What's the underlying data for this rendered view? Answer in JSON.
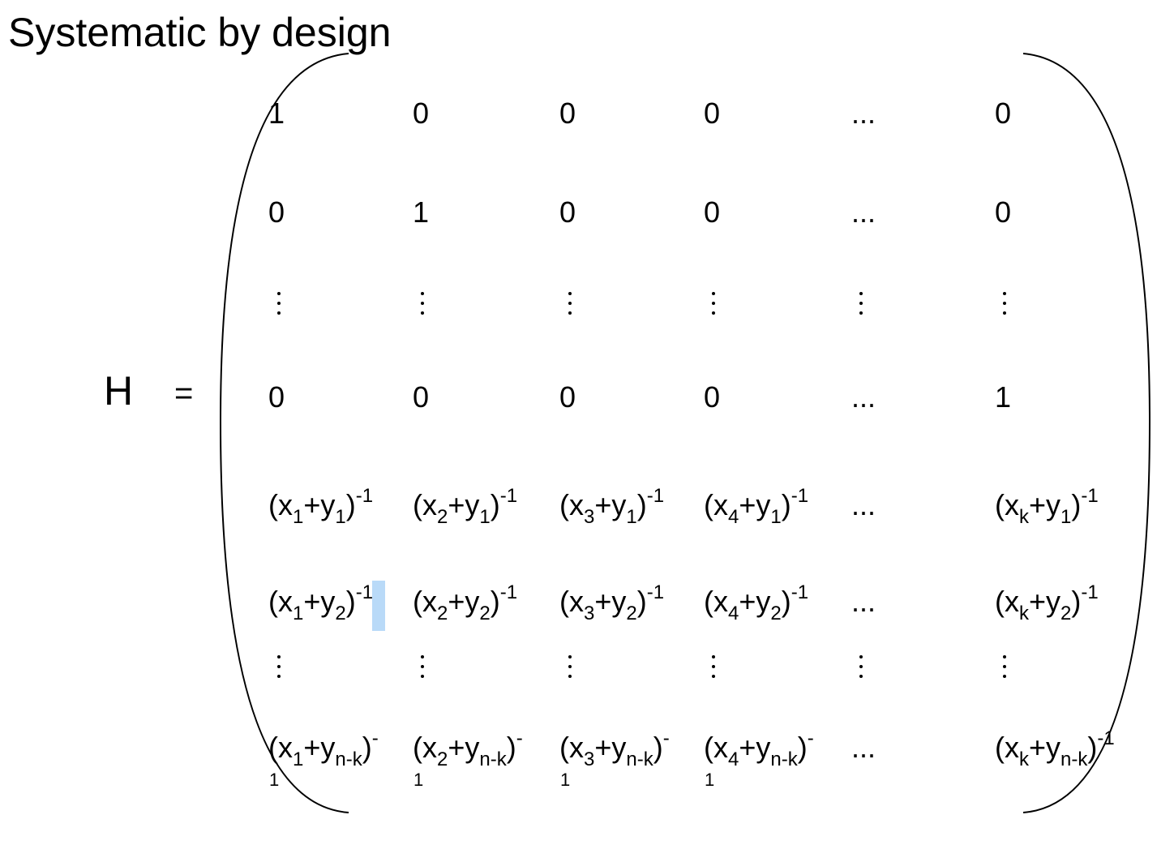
{
  "slide": {
    "title": "Systematic by design",
    "lhs_symbol": "H",
    "equals": "="
  },
  "matrix": {
    "identity_rows": [
      [
        "1",
        "0",
        "0",
        "0",
        "...",
        "0"
      ],
      [
        "0",
        "1",
        "0",
        "0",
        "...",
        "0"
      ],
      [
        "0",
        "0",
        "0",
        "0",
        "...",
        "1"
      ]
    ],
    "cauchy_rows": {
      "row_y1": {
        "c1": {
          "x": "1",
          "y": "1",
          "exp": "-1"
        },
        "c2": {
          "x": "2",
          "y": "1",
          "exp": "-1"
        },
        "c3": {
          "x": "3",
          "y": "1",
          "exp": "-1"
        },
        "c4": {
          "x": "4",
          "y": "1",
          "exp": "-1"
        },
        "ellipsis": "...",
        "ck": {
          "x": "k",
          "y": "1",
          "exp": "-1"
        }
      },
      "row_y2": {
        "c1": {
          "x": "1",
          "y": "2",
          "exp": "-1"
        },
        "c2": {
          "x": "2",
          "y": "2",
          "exp": "-1"
        },
        "c3": {
          "x": "3",
          "y": "2",
          "exp": "-1"
        },
        "c4": {
          "x": "4",
          "y": "2",
          "exp": "-1"
        },
        "ellipsis": "...",
        "ck": {
          "x": "k",
          "y": "2",
          "exp": "-1"
        }
      },
      "row_ynk": {
        "c1": {
          "x": "1",
          "y": "n-k",
          "exp": "-",
          "wrap": "1"
        },
        "c2": {
          "x": "2",
          "y": "n-k",
          "exp": "-",
          "wrap": "1"
        },
        "c3": {
          "x": "3",
          "y": "n-k",
          "exp": "-",
          "wrap": "1"
        },
        "c4": {
          "x": "4",
          "y": "n-k",
          "exp": "-",
          "wrap": "1"
        },
        "ellipsis": "...",
        "ck": {
          "x": "k",
          "y": "n-k",
          "exp": "-1"
        }
      }
    },
    "text": {
      "open": "(x",
      "plus": "+y",
      "close": ")"
    }
  }
}
